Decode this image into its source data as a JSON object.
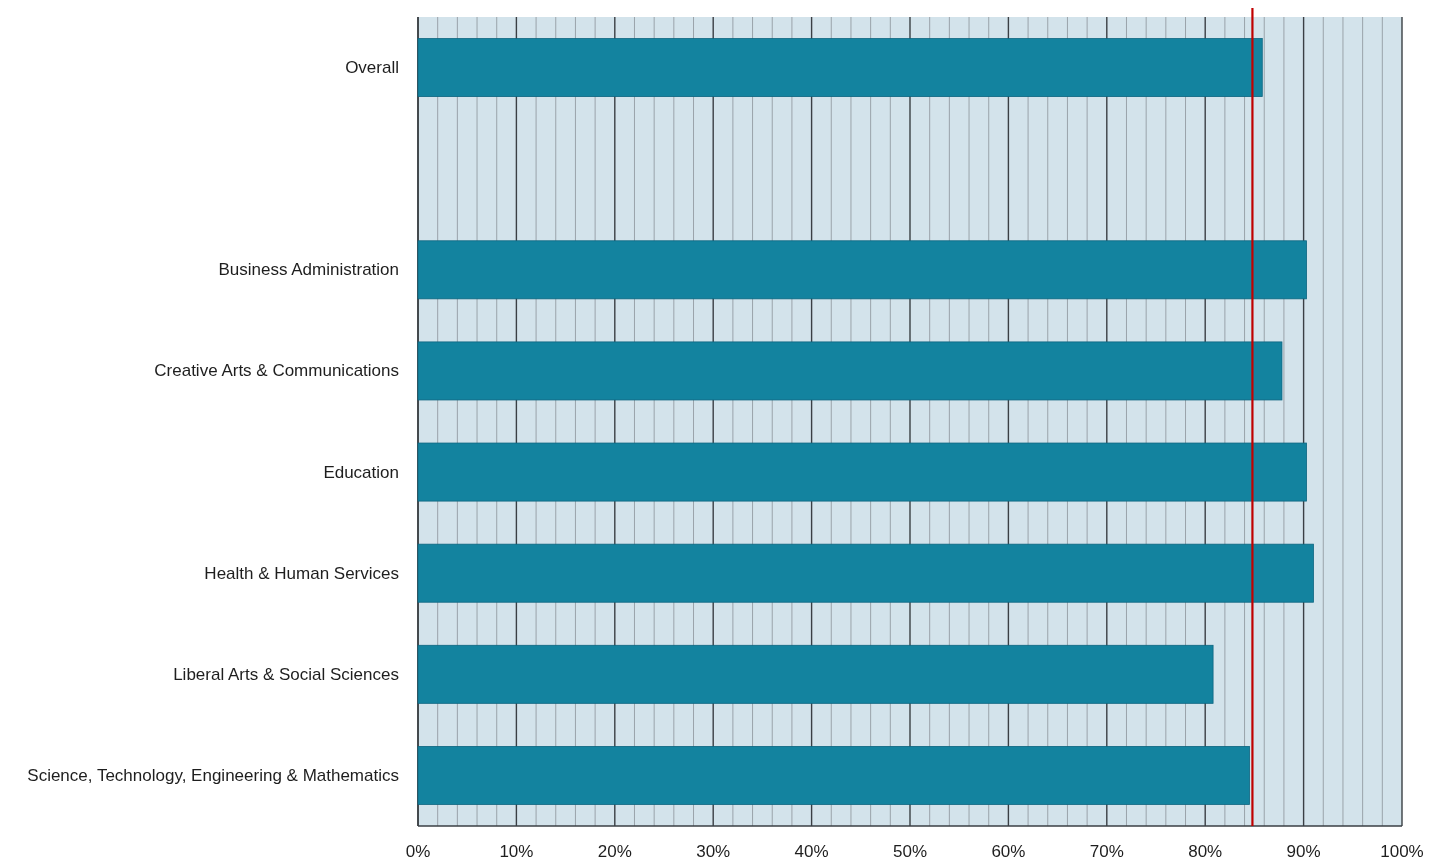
{
  "chart_data": {
    "type": "bar",
    "orientation": "horizontal",
    "categories": [
      "Overall",
      null,
      "Business Administration",
      "Creative Arts & Communications",
      "Education",
      "Health & Human Services",
      "Liberal Arts & Social Sciences",
      "Science, Technology, Engineering & Mathematics"
    ],
    "values": [
      85.8,
      null,
      90.3,
      87.8,
      90.3,
      91.0,
      80.8,
      84.5
    ],
    "color": "#13839f",
    "xlim": [
      0,
      100
    ],
    "xticks": [
      {
        "value": 0,
        "label": "0%"
      },
      {
        "value": 2,
        "label": null
      },
      {
        "value": 4,
        "label": null
      },
      {
        "value": 6,
        "label": null
      },
      {
        "value": 8,
        "label": null
      },
      {
        "value": 10,
        "label": "10%"
      },
      {
        "value": 12,
        "label": null
      },
      {
        "value": 14,
        "label": null
      },
      {
        "value": 16,
        "label": null
      },
      {
        "value": 18,
        "label": null
      },
      {
        "value": 20,
        "label": "20%"
      },
      {
        "value": 22,
        "label": null
      },
      {
        "value": 24,
        "label": null
      },
      {
        "value": 26,
        "label": null
      },
      {
        "value": 28,
        "label": null
      },
      {
        "value": 30,
        "label": "30%"
      },
      {
        "value": 32,
        "label": null
      },
      {
        "value": 34,
        "label": null
      },
      {
        "value": 36,
        "label": null
      },
      {
        "value": 38,
        "label": null
      },
      {
        "value": 40,
        "label": "40%"
      },
      {
        "value": 42,
        "label": null
      },
      {
        "value": 44,
        "label": null
      },
      {
        "value": 46,
        "label": null
      },
      {
        "value": 48,
        "label": null
      },
      {
        "value": 50,
        "label": "50%"
      },
      {
        "value": 52,
        "label": null
      },
      {
        "value": 54,
        "label": null
      },
      {
        "value": 56,
        "label": null
      },
      {
        "value": 58,
        "label": null
      },
      {
        "value": 60,
        "label": "60%"
      },
      {
        "value": 62,
        "label": null
      },
      {
        "value": 64,
        "label": null
      },
      {
        "value": 66,
        "label": null
      },
      {
        "value": 68,
        "label": null
      },
      {
        "value": 70,
        "label": "70%"
      },
      {
        "value": 72,
        "label": null
      },
      {
        "value": 74,
        "label": null
      },
      {
        "value": 76,
        "label": null
      },
      {
        "value": 78,
        "label": null
      },
      {
        "value": 80,
        "label": "80%"
      },
      {
        "value": 82,
        "label": null
      },
      {
        "value": 84,
        "label": null
      },
      {
        "value": 86,
        "label": null
      },
      {
        "value": 88,
        "label": null
      },
      {
        "value": 90,
        "label": "90%"
      },
      {
        "value": 92,
        "label": null
      },
      {
        "value": 94,
        "label": null
      },
      {
        "value": 96,
        "label": null
      },
      {
        "value": 98,
        "label": null
      },
      {
        "value": 100,
        "label": "100%"
      }
    ],
    "grid": "x",
    "ref_lines": [
      {
        "axis": "x",
        "value": 84.8,
        "color": "#c00000"
      }
    ]
  }
}
